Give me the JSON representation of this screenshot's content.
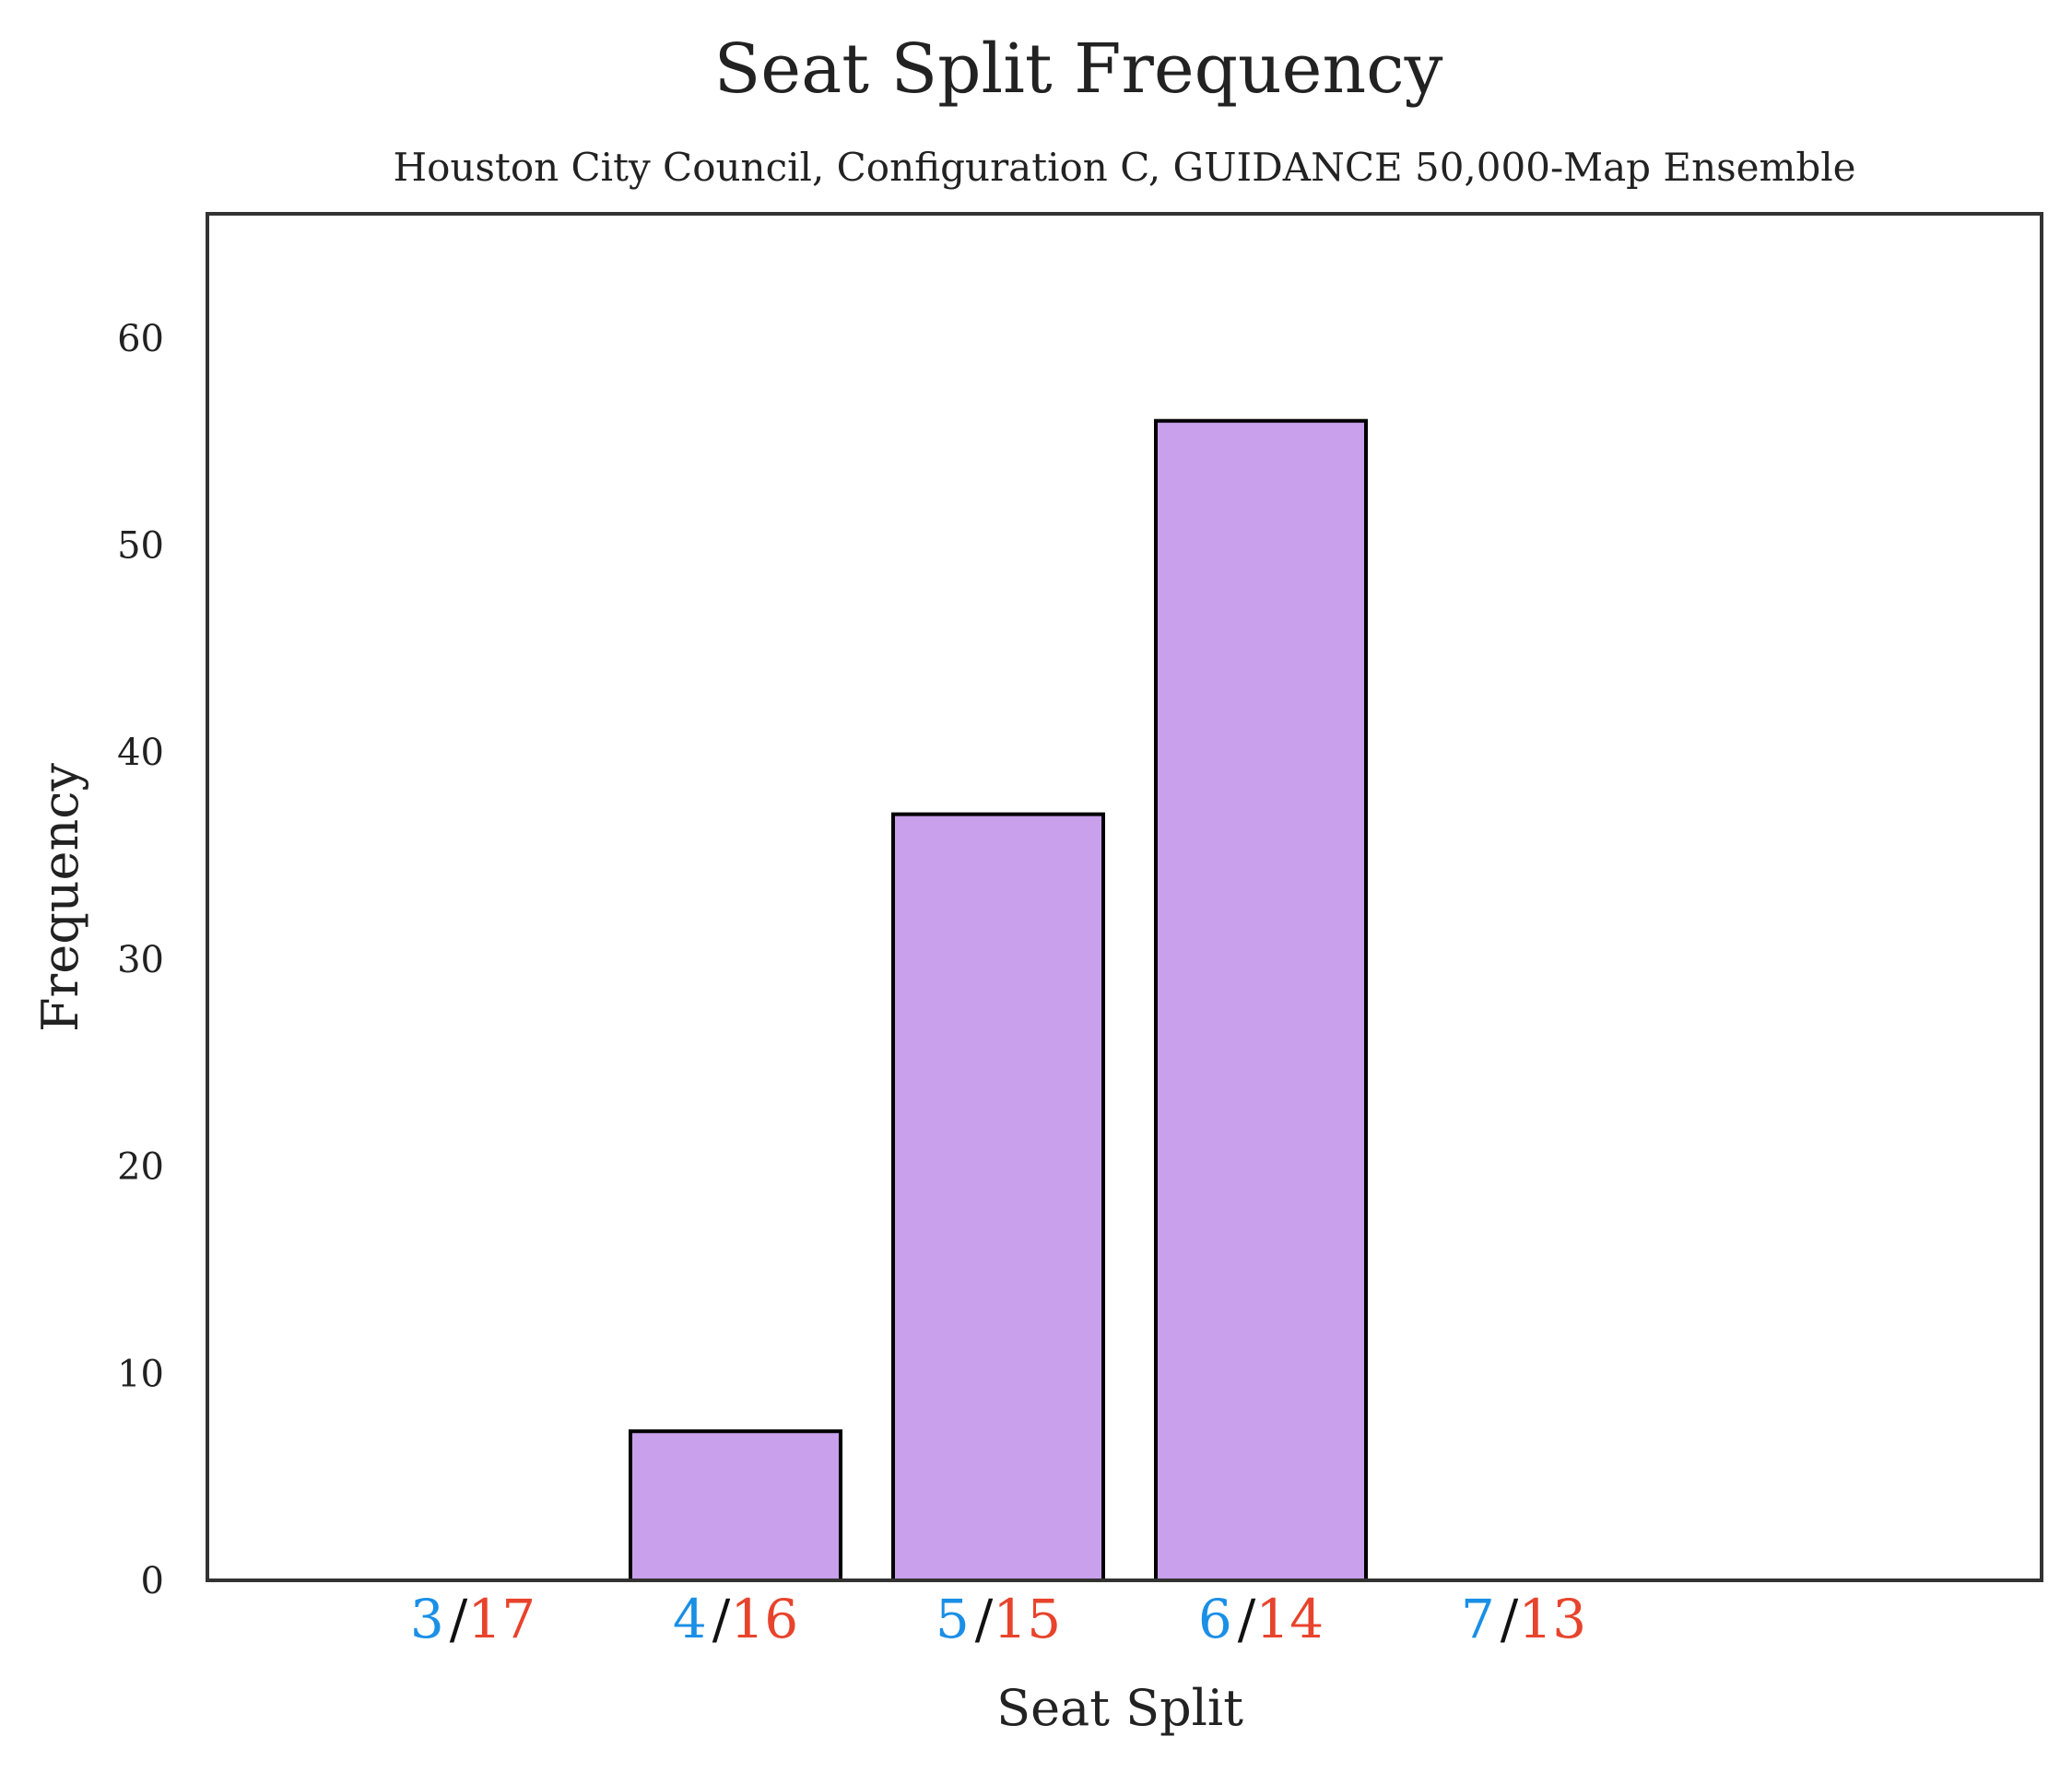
{
  "chart_data": {
    "type": "bar",
    "title": "Seat Split Frequency",
    "subtitle": "Houston City Council, Configuration C, GUIDANCE 50,000-Map Ensemble",
    "xlabel": "Seat Split",
    "ylabel": "Frequency",
    "categories": [
      "3/17",
      "4/16",
      "5/15",
      "6/14",
      "7/13"
    ],
    "category_parts": [
      {
        "left": "3",
        "sep": "/",
        "right": "17"
      },
      {
        "left": "4",
        "sep": "/",
        "right": "16"
      },
      {
        "left": "5",
        "sep": "/",
        "right": "15"
      },
      {
        "left": "6",
        "sep": "/",
        "right": "14"
      },
      {
        "left": "7",
        "sep": "/",
        "right": "13"
      }
    ],
    "values": [
      0,
      7.2,
      37,
      56,
      0
    ],
    "ylim": [
      0,
      66
    ],
    "yticks": [
      0,
      10,
      20,
      30,
      40,
      50,
      60
    ],
    "grid": false,
    "legend": "none",
    "colors": {
      "bar_fill": "#c8a0ec",
      "bar_edge": "#000000",
      "left_number": "#1a8fe6",
      "right_number": "#e8432c",
      "separator": "#111111",
      "frame": "#333333",
      "text": "#222222"
    }
  }
}
